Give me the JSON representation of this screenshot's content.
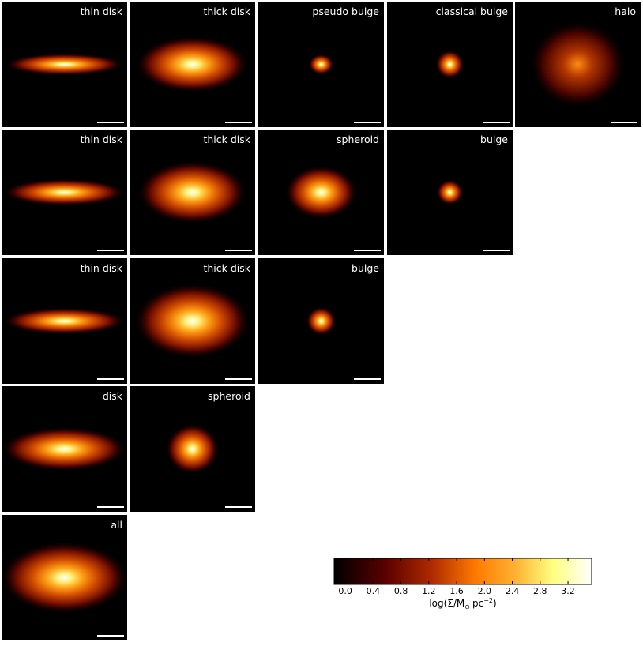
{
  "rows": [
    [
      "thin disk",
      "thick disk",
      "pseudo bulge",
      "classical bulge",
      "halo"
    ],
    [
      "thin disk",
      "thick disk",
      "spheroid",
      "bulge"
    ],
    [
      "thin disk",
      "thick disk",
      "bulge"
    ],
    [
      "disk",
      "spheroid"
    ],
    [
      "all"
    ]
  ],
  "colorbar": {
    "lim": [
      -0.16,
      3.54
    ],
    "ticks": [
      {
        "value": 0,
        "label": "0.0"
      },
      {
        "value": 0.4,
        "label": "0.4"
      },
      {
        "value": 0.8,
        "label": "0.8"
      },
      {
        "value": 1.2,
        "label": "1.2"
      },
      {
        "value": 1.6,
        "label": "1.6"
      },
      {
        "value": 2.0,
        "label": "2.0"
      },
      {
        "value": 2.4,
        "label": "2.4"
      },
      {
        "value": 2.8,
        "label": "2.8"
      },
      {
        "value": 3.2,
        "label": "3.2"
      }
    ],
    "label": {
      "start": "log(Σ/M",
      "sub": "⊙",
      "unit": "pc",
      "sup": "−2",
      "end": ")"
    }
  }
}
